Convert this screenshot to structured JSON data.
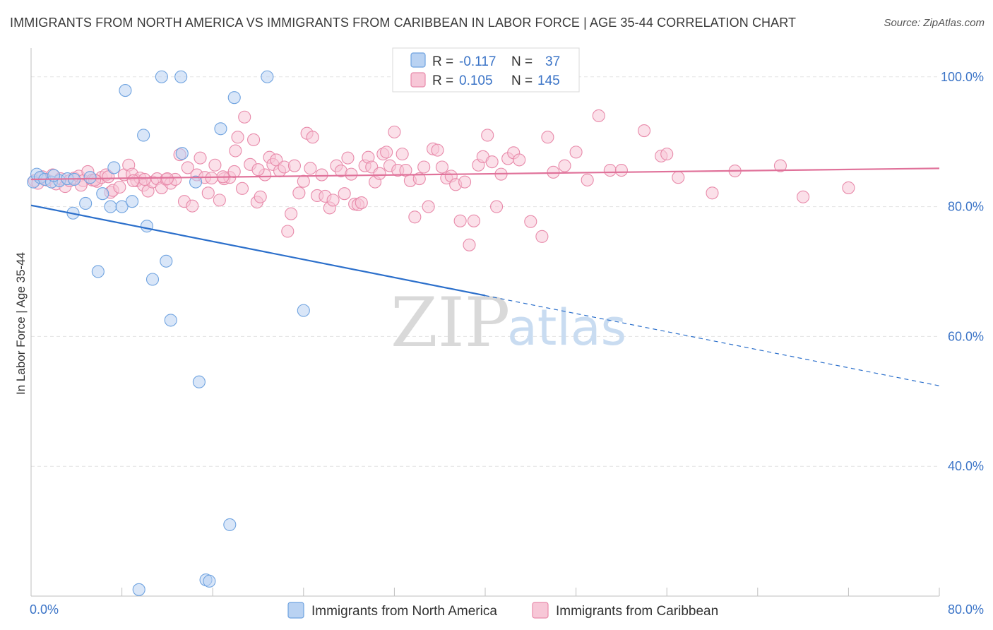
{
  "title": "IMMIGRANTS FROM NORTH AMERICA VS IMMIGRANTS FROM CARIBBEAN IN LABOR FORCE | AGE 35-44 CORRELATION CHART",
  "source": "Source: ZipAtlas.com",
  "watermark": {
    "zip": "ZIP",
    "atlas": "atlas"
  },
  "colors": {
    "blue": "#6fa3e0",
    "blue_fill": "#b9d2f2",
    "blue_line": "#2b6fcb",
    "pink": "#e88aaa",
    "pink_fill": "#f7c7d7",
    "pink_line": "#e0729a",
    "tick": "#3b74c7",
    "grid": "#e3e3e3"
  },
  "legend": {
    "rows": [
      {
        "r_label": "R =",
        "r_value": "-0.117",
        "n_label": "N =",
        "n_value": "37"
      },
      {
        "r_label": "R =",
        "r_value": "0.105",
        "n_label": "N =",
        "n_value": "145"
      }
    ]
  },
  "chart_data": {
    "type": "scatter",
    "xlim": [
      0,
      80
    ],
    "ylim": [
      20,
      104
    ],
    "x_ticks": [
      "0.0%",
      "80.0%"
    ],
    "y_ticks": [
      {
        "value": 100,
        "label": "100.0%"
      },
      {
        "value": 80,
        "label": "80.0%"
      },
      {
        "value": 60,
        "label": "60.0%"
      },
      {
        "value": 40,
        "label": "40.0%"
      }
    ],
    "ylabel": "In Labor Force | Age 35-44",
    "grid": true,
    "legend_position": "top-center",
    "series": [
      {
        "name": "Immigrants from North America",
        "color": "blue",
        "trend": {
          "x0": 0,
          "y0": 80.2,
          "x1": 40,
          "y1": 66.3,
          "x_dash_end": 80,
          "y_dash_end": 52.4
        },
        "points": [
          [
            0.2,
            83.8
          ],
          [
            0.5,
            85.0
          ],
          [
            0.8,
            84.5
          ],
          [
            1.2,
            84.2
          ],
          [
            1.8,
            83.8
          ],
          [
            2.5,
            84.0
          ],
          [
            3.2,
            84.3
          ],
          [
            3.8,
            84.2
          ],
          [
            5.2,
            84.5
          ],
          [
            11.5,
            100.0
          ],
          [
            13.2,
            100.0
          ],
          [
            20.8,
            100.0
          ],
          [
            8.3,
            97.9
          ],
          [
            17.9,
            96.8
          ],
          [
            9.9,
            91.0
          ],
          [
            16.7,
            92.0
          ],
          [
            13.3,
            88.2
          ],
          [
            7.3,
            86.0
          ],
          [
            14.5,
            83.8
          ],
          [
            6.3,
            82.0
          ],
          [
            4.8,
            80.5
          ],
          [
            7.0,
            80.0
          ],
          [
            8.0,
            80.0
          ],
          [
            8.9,
            80.8
          ],
          [
            3.7,
            79.0
          ],
          [
            10.2,
            77.0
          ],
          [
            11.9,
            71.6
          ],
          [
            5.9,
            70.0
          ],
          [
            10.7,
            68.8
          ],
          [
            12.3,
            62.5
          ],
          [
            24.0,
            64.0
          ],
          [
            14.8,
            53.0
          ],
          [
            17.5,
            31.0
          ],
          [
            15.4,
            22.5
          ],
          [
            15.7,
            22.3
          ],
          [
            9.5,
            21.0
          ],
          [
            2.0,
            84.8
          ]
        ]
      },
      {
        "name": "Immigrants from Caribbean",
        "color": "pink",
        "trend": {
          "x0": 0,
          "y0": 84.2,
          "x1": 80,
          "y1": 85.9
        },
        "points": [
          [
            0.3,
            84.0
          ],
          [
            0.6,
            83.6
          ],
          [
            1.0,
            84.6
          ],
          [
            1.4,
            84.1
          ],
          [
            1.9,
            84.9
          ],
          [
            2.2,
            83.5
          ],
          [
            2.6,
            84.3
          ],
          [
            3.0,
            83.1
          ],
          [
            3.4,
            84.0
          ],
          [
            3.8,
            84.4
          ],
          [
            4.2,
            84.7
          ],
          [
            4.6,
            84.0
          ],
          [
            5.0,
            85.4
          ],
          [
            5.4,
            84.1
          ],
          [
            5.8,
            83.9
          ],
          [
            6.2,
            84.5
          ],
          [
            6.6,
            84.9
          ],
          [
            7.0,
            82.2
          ],
          [
            7.2,
            82.5
          ],
          [
            7.8,
            83.0
          ],
          [
            8.2,
            84.9
          ],
          [
            8.6,
            86.4
          ],
          [
            8.9,
            85.0
          ],
          [
            9.3,
            84.0
          ],
          [
            9.6,
            84.4
          ],
          [
            9.9,
            83.3
          ],
          [
            10.3,
            82.4
          ],
          [
            10.7,
            83.8
          ],
          [
            11.1,
            84.3
          ],
          [
            11.5,
            82.9
          ],
          [
            11.9,
            84.2
          ],
          [
            12.3,
            83.6
          ],
          [
            12.7,
            84.2
          ],
          [
            13.1,
            88.0
          ],
          [
            13.5,
            80.8
          ],
          [
            13.8,
            86.0
          ],
          [
            14.2,
            80.1
          ],
          [
            14.6,
            84.9
          ],
          [
            14.9,
            87.5
          ],
          [
            15.3,
            84.5
          ],
          [
            15.6,
            82.1
          ],
          [
            15.9,
            84.4
          ],
          [
            16.2,
            86.4
          ],
          [
            16.6,
            81.0
          ],
          [
            17.0,
            84.3
          ],
          [
            17.5,
            84.5
          ],
          [
            17.9,
            85.4
          ],
          [
            18.0,
            88.6
          ],
          [
            18.2,
            90.7
          ],
          [
            18.6,
            82.8
          ],
          [
            18.8,
            93.8
          ],
          [
            19.3,
            86.5
          ],
          [
            19.6,
            90.3
          ],
          [
            19.9,
            80.7
          ],
          [
            20.2,
            81.5
          ],
          [
            20.6,
            84.9
          ],
          [
            21.0,
            87.6
          ],
          [
            21.3,
            86.5
          ],
          [
            21.6,
            87.2
          ],
          [
            21.9,
            85.5
          ],
          [
            22.3,
            86.1
          ],
          [
            22.6,
            76.2
          ],
          [
            22.9,
            78.9
          ],
          [
            23.2,
            86.3
          ],
          [
            23.6,
            82.1
          ],
          [
            24.0,
            83.9
          ],
          [
            24.3,
            91.3
          ],
          [
            24.6,
            85.9
          ],
          [
            24.8,
            90.7
          ],
          [
            25.2,
            81.7
          ],
          [
            25.6,
            84.9
          ],
          [
            25.9,
            81.6
          ],
          [
            26.3,
            79.8
          ],
          [
            26.6,
            81.0
          ],
          [
            26.9,
            86.3
          ],
          [
            27.3,
            85.5
          ],
          [
            27.6,
            82.0
          ],
          [
            27.9,
            87.5
          ],
          [
            28.2,
            85.0
          ],
          [
            28.5,
            80.4
          ],
          [
            28.8,
            80.3
          ],
          [
            29.1,
            80.6
          ],
          [
            29.4,
            86.3
          ],
          [
            29.7,
            87.6
          ],
          [
            30.0,
            86.1
          ],
          [
            30.3,
            83.8
          ],
          [
            30.7,
            85.1
          ],
          [
            31.0,
            88.1
          ],
          [
            31.3,
            88.4
          ],
          [
            31.6,
            86.3
          ],
          [
            32.0,
            91.5
          ],
          [
            32.3,
            85.6
          ],
          [
            32.7,
            88.1
          ],
          [
            33.0,
            85.6
          ],
          [
            33.4,
            84.0
          ],
          [
            33.8,
            78.4
          ],
          [
            34.2,
            84.3
          ],
          [
            34.6,
            86.1
          ],
          [
            35.0,
            80.0
          ],
          [
            35.4,
            88.9
          ],
          [
            35.8,
            88.7
          ],
          [
            36.2,
            86.1
          ],
          [
            36.6,
            84.4
          ],
          [
            37.0,
            84.7
          ],
          [
            37.4,
            83.4
          ],
          [
            37.8,
            77.8
          ],
          [
            38.2,
            83.8
          ],
          [
            38.6,
            74.1
          ],
          [
            39.0,
            77.8
          ],
          [
            39.4,
            86.4
          ],
          [
            39.8,
            87.7
          ],
          [
            40.2,
            91.0
          ],
          [
            40.6,
            86.9
          ],
          [
            41.0,
            80.0
          ],
          [
            41.4,
            85.0
          ],
          [
            42.0,
            87.4
          ],
          [
            42.5,
            88.3
          ],
          [
            43.0,
            87.2
          ],
          [
            44.0,
            77.7
          ],
          [
            45.0,
            75.4
          ],
          [
            45.5,
            90.7
          ],
          [
            46.0,
            85.3
          ],
          [
            47.0,
            86.3
          ],
          [
            48.0,
            88.4
          ],
          [
            49.0,
            84.1
          ],
          [
            50.0,
            94.0
          ],
          [
            51.0,
            85.6
          ],
          [
            52.0,
            85.6
          ],
          [
            54.0,
            91.7
          ],
          [
            55.5,
            87.8
          ],
          [
            56.0,
            88.1
          ],
          [
            57.0,
            84.5
          ],
          [
            60.0,
            82.1
          ],
          [
            62.0,
            85.5
          ],
          [
            66.0,
            86.3
          ],
          [
            68.0,
            81.5
          ],
          [
            72.0,
            82.9
          ],
          [
            20.0,
            85.7
          ],
          [
            16.9,
            84.6
          ],
          [
            12.0,
            84.3
          ],
          [
            10.0,
            84.2
          ],
          [
            9.0,
            84.0
          ],
          [
            6.8,
            84.6
          ],
          [
            5.6,
            84.1
          ],
          [
            4.4,
            83.3
          ]
        ]
      }
    ]
  }
}
